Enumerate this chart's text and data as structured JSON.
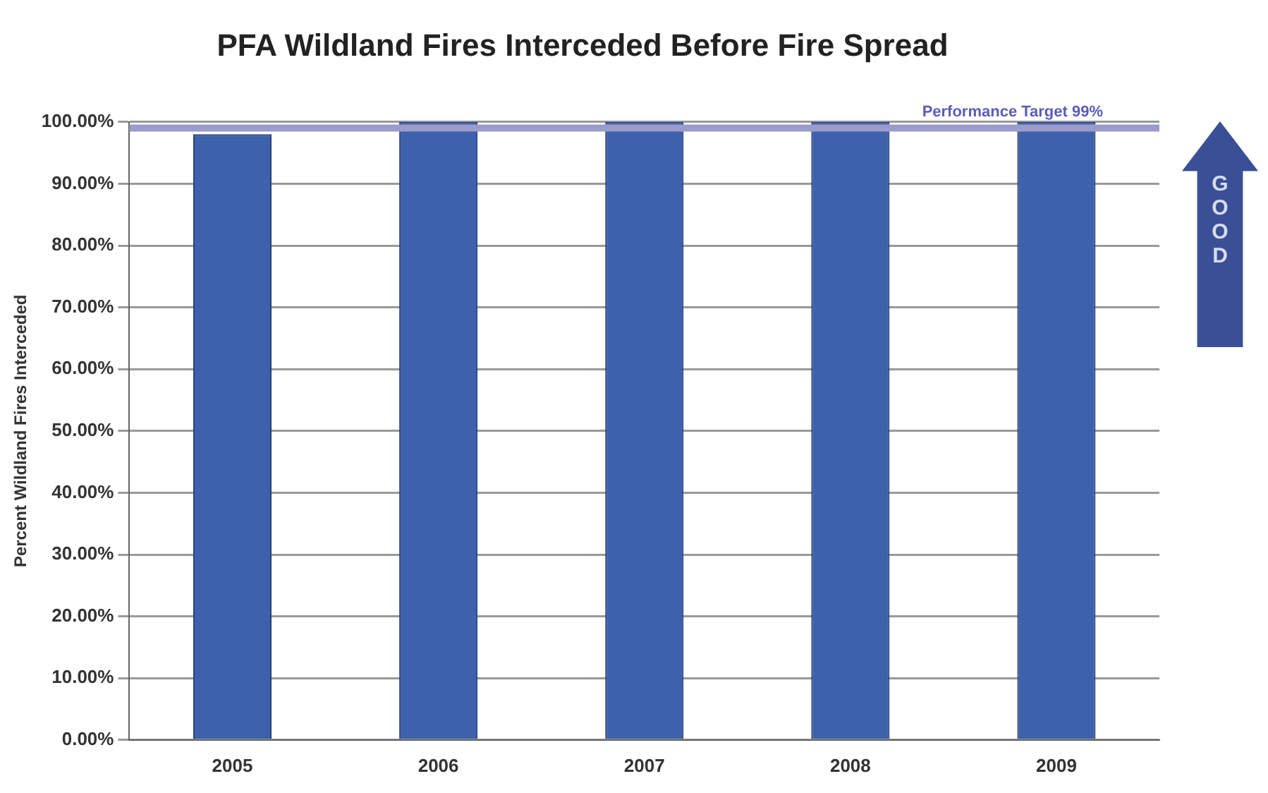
{
  "chart_data": {
    "type": "bar",
    "title": "PFA Wildland Fires Interceded Before Fire Spread",
    "ylabel": "Percent Wildland Fires Interceded",
    "categories": [
      "2005",
      "2006",
      "2007",
      "2008",
      "2009"
    ],
    "values": [
      98,
      100,
      100,
      100,
      100
    ],
    "color": "#3d62ab",
    "ylim": [
      0,
      100
    ],
    "yticks": [
      {
        "value": 0,
        "label": "0.00%"
      },
      {
        "value": 10,
        "label": "10.00%"
      },
      {
        "value": 20,
        "label": "20.00%"
      },
      {
        "value": 30,
        "label": "30.00%"
      },
      {
        "value": 40,
        "label": "40.00%"
      },
      {
        "value": 50,
        "label": "50.00%"
      },
      {
        "value": 60,
        "label": "60.00%"
      },
      {
        "value": 70,
        "label": "70.00%"
      },
      {
        "value": 80,
        "label": "80.00%"
      },
      {
        "value": 90,
        "label": "90.00%"
      },
      {
        "value": 100,
        "label": "100.00%"
      }
    ],
    "grid": "y",
    "ref_lines": [
      {
        "axis": "y",
        "value": 99,
        "label": "Performance Target 99%",
        "color": "#9a9ccc"
      }
    ],
    "annotations": [
      "GOOD"
    ]
  }
}
